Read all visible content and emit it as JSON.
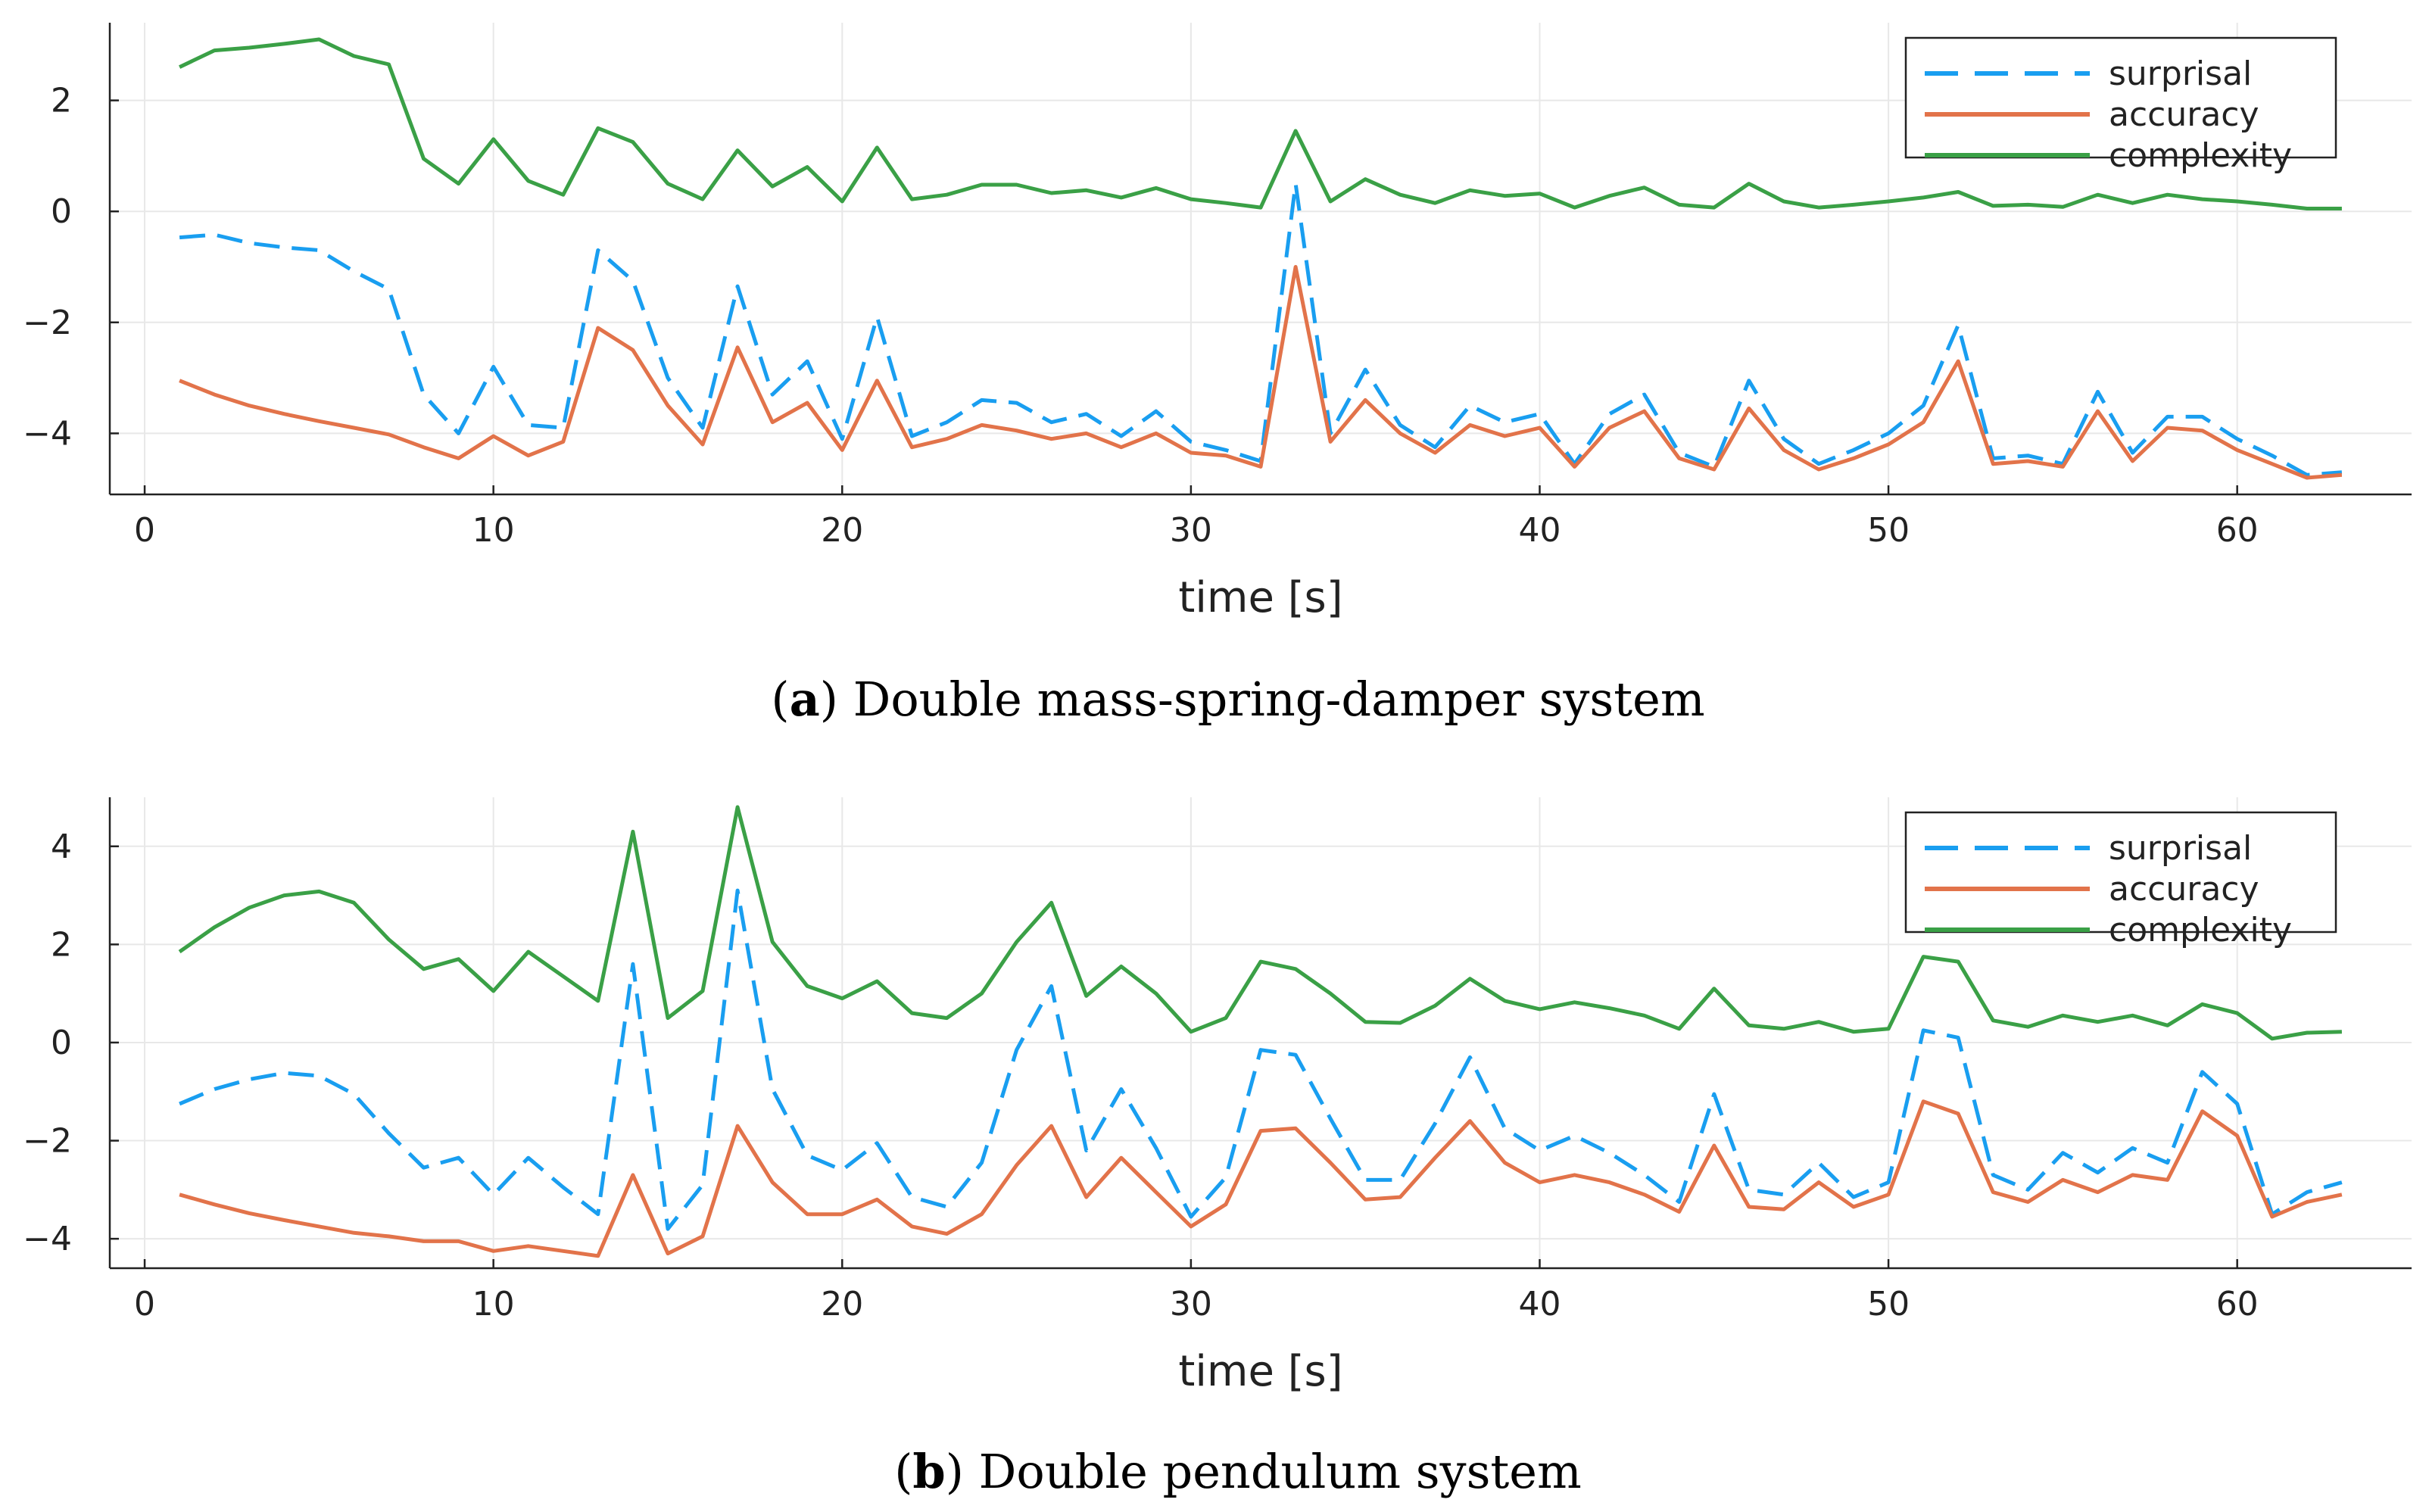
{
  "colors": {
    "surprisal": "#199ef0",
    "accuracy": "#e2734a",
    "complexity": "#3aa046"
  },
  "chart_data": [
    {
      "type": "line",
      "caption_letter": "a",
      "caption_text": ") Double mass-spring-damper system",
      "caption_open": "(",
      "xlabel": "time [s]",
      "ylabel": "",
      "xlim": [
        -1,
        65
      ],
      "ylim": [
        -5.1,
        3.4
      ],
      "xticks": [
        0,
        10,
        20,
        30,
        40,
        50,
        60
      ],
      "xtick_labels": [
        "0",
        "10",
        "20",
        "30",
        "40",
        "50",
        "60"
      ],
      "yticks": [
        -4,
        -2,
        0,
        2
      ],
      "ytick_labels": [
        "−4",
        "−2",
        "0",
        "2"
      ],
      "legend_position": "top-right",
      "x": [
        1,
        2,
        3,
        4,
        5,
        6,
        7,
        8,
        9,
        10,
        11,
        12,
        13,
        14,
        15,
        16,
        17,
        18,
        19,
        20,
        21,
        22,
        23,
        24,
        25,
        26,
        27,
        28,
        29,
        30,
        31,
        32,
        33,
        34,
        35,
        36,
        37,
        38,
        39,
        40,
        41,
        42,
        43,
        44,
        45,
        46,
        47,
        48,
        49,
        50,
        51,
        52,
        53,
        54,
        55,
        56,
        57,
        58,
        59,
        60,
        61,
        62,
        63
      ],
      "series": [
        {
          "name": "surprisal",
          "key": "surprisal",
          "dashed": true,
          "values": [
            -0.47,
            -0.42,
            -0.57,
            -0.65,
            -0.7,
            -1.08,
            -1.4,
            -3.3,
            -4.0,
            -2.8,
            -3.85,
            -3.9,
            -0.7,
            -1.25,
            -3.0,
            -3.9,
            -1.35,
            -3.3,
            -2.7,
            -4.1,
            -1.9,
            -4.05,
            -3.8,
            -3.4,
            -3.45,
            -3.8,
            -3.65,
            -4.05,
            -3.6,
            -4.15,
            -4.3,
            -4.5,
            0.5,
            -4.0,
            -2.85,
            -3.85,
            -4.25,
            -3.5,
            -3.8,
            -3.65,
            -4.55,
            -3.65,
            -3.3,
            -4.35,
            -4.6,
            -3.05,
            -4.1,
            -4.55,
            -4.3,
            -4.0,
            -3.5,
            -2.05,
            -4.45,
            -4.4,
            -4.55,
            -3.25,
            -4.35,
            -3.7,
            -3.7,
            -4.1,
            -4.4,
            -4.75,
            -4.7
          ]
        },
        {
          "name": "accuracy",
          "key": "accuracy",
          "dashed": false,
          "values": [
            -3.05,
            -3.3,
            -3.5,
            -3.65,
            -3.78,
            -3.9,
            -4.02,
            -4.25,
            -4.45,
            -4.05,
            -4.4,
            -4.15,
            -2.1,
            -2.5,
            -3.5,
            -4.2,
            -2.45,
            -3.8,
            -3.45,
            -4.3,
            -3.05,
            -4.25,
            -4.1,
            -3.85,
            -3.95,
            -4.1,
            -4.0,
            -4.25,
            -4.0,
            -4.35,
            -4.4,
            -4.6,
            -1.0,
            -4.15,
            -3.4,
            -4.0,
            -4.35,
            -3.85,
            -4.05,
            -3.9,
            -4.6,
            -3.9,
            -3.6,
            -4.45,
            -4.65,
            -3.55,
            -4.3,
            -4.65,
            -4.45,
            -4.2,
            -3.8,
            -2.7,
            -4.55,
            -4.5,
            -4.6,
            -3.6,
            -4.5,
            -3.9,
            -3.95,
            -4.3,
            -4.55,
            -4.8,
            -4.75
          ]
        },
        {
          "name": "complexity",
          "key": "complexity",
          "dashed": false,
          "values": [
            2.6,
            2.9,
            2.95,
            3.02,
            3.1,
            2.8,
            2.65,
            0.95,
            0.5,
            1.3,
            0.55,
            0.3,
            1.5,
            1.25,
            0.5,
            0.22,
            1.1,
            0.45,
            0.8,
            0.18,
            1.15,
            0.22,
            0.3,
            0.48,
            0.48,
            0.33,
            0.38,
            0.25,
            0.42,
            0.22,
            0.15,
            0.07,
            1.45,
            0.18,
            0.58,
            0.3,
            0.15,
            0.38,
            0.28,
            0.32,
            0.07,
            0.28,
            0.43,
            0.12,
            0.07,
            0.5,
            0.18,
            0.07,
            0.12,
            0.18,
            0.25,
            0.35,
            0.1,
            0.12,
            0.08,
            0.3,
            0.15,
            0.3,
            0.22,
            0.18,
            0.12,
            0.05,
            0.05
          ]
        }
      ]
    },
    {
      "type": "line",
      "caption_letter": "b",
      "caption_text": ") Double pendulum system",
      "caption_open": "(",
      "xlabel": "time [s]",
      "ylabel": "",
      "xlim": [
        -1,
        65
      ],
      "ylim": [
        -4.6,
        5.0
      ],
      "xticks": [
        0,
        10,
        20,
        30,
        40,
        50,
        60
      ],
      "xtick_labels": [
        "0",
        "10",
        "20",
        "30",
        "40",
        "50",
        "60"
      ],
      "yticks": [
        -4,
        -2,
        0,
        2,
        4
      ],
      "ytick_labels": [
        "−4",
        "−2",
        "0",
        "2",
        "4"
      ],
      "legend_position": "top-right",
      "x": [
        1,
        2,
        3,
        4,
        5,
        6,
        7,
        8,
        9,
        10,
        11,
        12,
        13,
        14,
        15,
        16,
        17,
        18,
        19,
        20,
        21,
        22,
        23,
        24,
        25,
        26,
        27,
        28,
        29,
        30,
        31,
        32,
        33,
        34,
        35,
        36,
        37,
        38,
        39,
        40,
        41,
        42,
        43,
        44,
        45,
        46,
        47,
        48,
        49,
        50,
        51,
        52,
        53,
        54,
        55,
        56,
        57,
        58,
        59,
        60,
        61,
        62,
        63
      ],
      "series": [
        {
          "name": "surprisal",
          "key": "surprisal",
          "dashed": true,
          "values": [
            -1.25,
            -0.95,
            -0.75,
            -0.62,
            -0.68,
            -1.05,
            -1.85,
            -2.55,
            -2.35,
            -3.1,
            -2.35,
            -2.95,
            -3.5,
            1.6,
            -3.8,
            -2.9,
            3.1,
            -0.95,
            -2.3,
            -2.6,
            -2.05,
            -3.15,
            -3.35,
            -2.45,
            -0.15,
            1.15,
            -2.2,
            -0.95,
            -2.15,
            -3.55,
            -2.75,
            -0.15,
            -0.25,
            -1.55,
            -2.8,
            -2.8,
            -1.65,
            -0.3,
            -1.75,
            -2.2,
            -1.9,
            -2.25,
            -2.7,
            -3.25,
            -1.05,
            -3.0,
            -3.1,
            -2.45,
            -3.15,
            -2.85,
            0.25,
            0.1,
            -2.7,
            -3.0,
            -2.25,
            -2.65,
            -2.15,
            -2.45,
            -0.6,
            -1.25,
            -3.5,
            -3.05,
            -2.85
          ]
        },
        {
          "name": "accuracy",
          "key": "accuracy",
          "dashed": false,
          "values": [
            -3.1,
            -3.3,
            -3.48,
            -3.62,
            -3.75,
            -3.88,
            -3.95,
            -4.05,
            -4.05,
            -4.25,
            -4.15,
            -4.25,
            -4.35,
            -2.7,
            -4.3,
            -3.95,
            -1.7,
            -2.85,
            -3.5,
            -3.5,
            -3.2,
            -3.75,
            -3.9,
            -3.5,
            -2.5,
            -1.7,
            -3.15,
            -2.35,
            -3.05,
            -3.75,
            -3.3,
            -1.8,
            -1.75,
            -2.45,
            -3.2,
            -3.15,
            -2.35,
            -1.6,
            -2.45,
            -2.85,
            -2.7,
            -2.85,
            -3.1,
            -3.45,
            -2.1,
            -3.35,
            -3.4,
            -2.85,
            -3.35,
            -3.1,
            -1.2,
            -1.45,
            -3.05,
            -3.25,
            -2.8,
            -3.05,
            -2.7,
            -2.8,
            -1.4,
            -1.9,
            -3.55,
            -3.25,
            -3.1
          ]
        },
        {
          "name": "complexity",
          "key": "complexity",
          "dashed": false,
          "values": [
            1.85,
            2.35,
            2.75,
            3.0,
            3.08,
            2.85,
            2.1,
            1.5,
            1.7,
            1.05,
            1.85,
            1.35,
            0.85,
            4.3,
            0.5,
            1.05,
            4.8,
            2.05,
            1.15,
            0.9,
            1.25,
            0.6,
            0.5,
            1.0,
            2.05,
            2.85,
            0.95,
            1.55,
            1.0,
            0.22,
            0.5,
            1.65,
            1.5,
            1.0,
            0.42,
            0.4,
            0.75,
            1.3,
            0.85,
            0.68,
            0.82,
            0.7,
            0.55,
            0.28,
            1.1,
            0.35,
            0.28,
            0.42,
            0.22,
            0.28,
            1.75,
            1.65,
            0.45,
            0.32,
            0.55,
            0.42,
            0.55,
            0.35,
            0.78,
            0.6,
            0.08,
            0.2,
            0.22
          ]
        }
      ]
    }
  ]
}
